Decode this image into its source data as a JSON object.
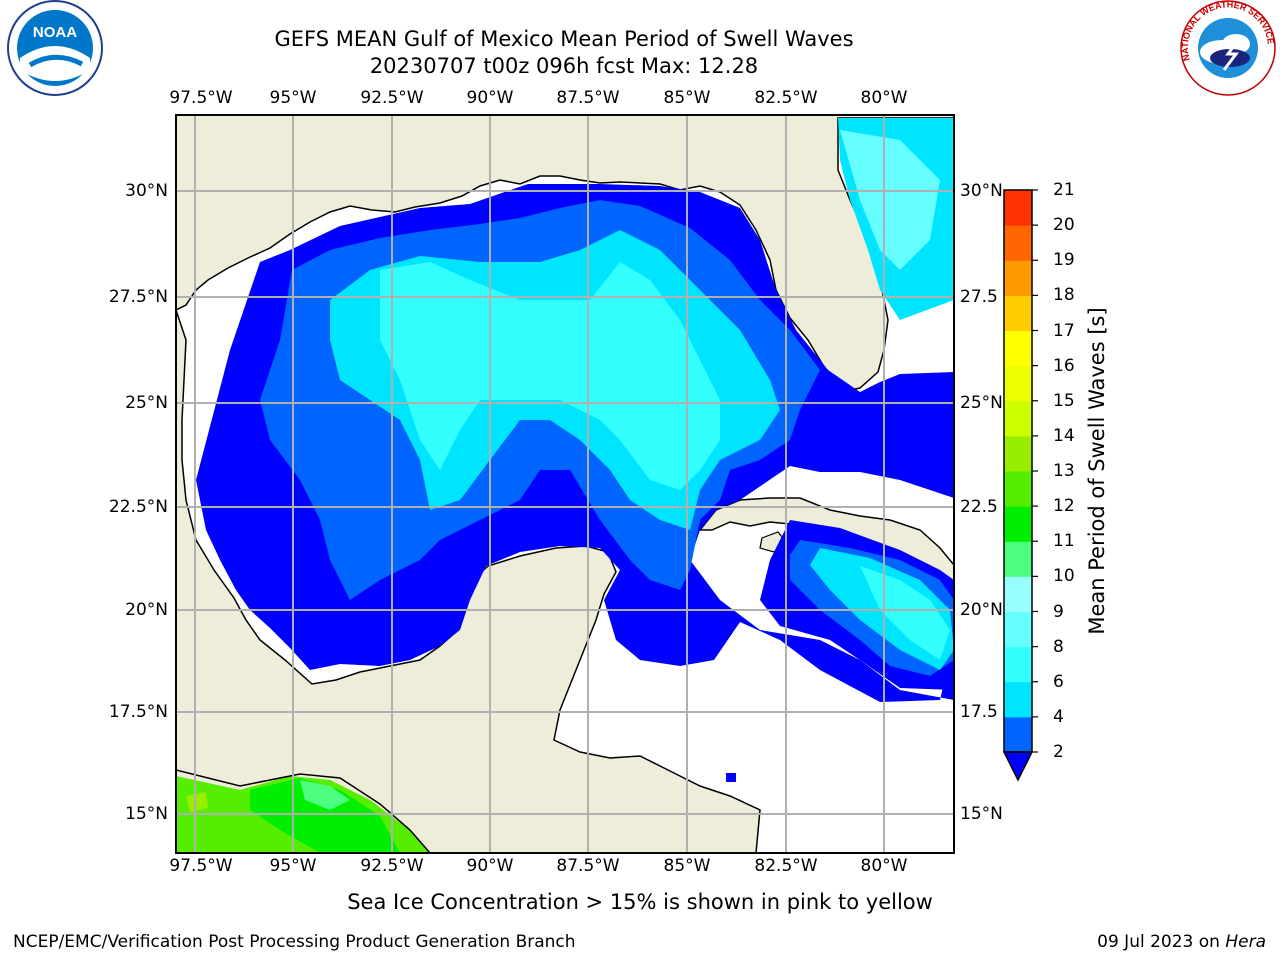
{
  "title": {
    "line1": "GEFS MEAN Gulf of Mexico Mean Period of Swell Waves",
    "line2": "20230707 t00z 096h fcst   Max: 12.28"
  },
  "logos": {
    "left": "noaa-logo",
    "left_text": "NOAA",
    "right": "nws-logo",
    "right_text": "NATIONAL WEATHER SERVICE"
  },
  "map": {
    "lon_ticks": [
      "97.5°W",
      "95°W",
      "92.5°W",
      "90°W",
      "87.5°W",
      "85°W",
      "82.5°W",
      "80°W"
    ],
    "lat_ticks_left": [
      "30°N",
      "27.5°N",
      "25°N",
      "22.5°N",
      "20°N",
      "17.5°N",
      "15°N"
    ],
    "lat_ticks_right": [
      "30°N",
      "27.5",
      "25°N",
      "22.5",
      "20°N",
      "17.5",
      "15°N"
    ],
    "colors": {
      "land": "#eeedd9",
      "grid": "#b0b0b0",
      "coast": "#000000"
    }
  },
  "colorbar": {
    "title": "Mean Period of Swell Waves [s]",
    "labels": [
      "2",
      "4",
      "6",
      "8",
      "9",
      "10",
      "11",
      "12",
      "13",
      "14",
      "15",
      "16",
      "17",
      "18",
      "19",
      "20",
      "21"
    ],
    "colors": [
      "#0064ff",
      "#00e5ff",
      "#33ffff",
      "#66ffff",
      "#99ffff",
      "#4dff80",
      "#00ee00",
      "#55ee00",
      "#99ee00",
      "#ccff00",
      "#eeff00",
      "#ffff00",
      "#ffcc00",
      "#ff9900",
      "#ff6600",
      "#ff3300",
      "#ff0000"
    ],
    "extend_color": "#0000ff"
  },
  "footnote": "Sea Ice Concentration > 15% is shown in pink to yellow",
  "footer": {
    "left": "NCEP/EMC/Verification Post Processing Product Generation Branch",
    "right_date": "09 Jul 2023 on ",
    "right_host": "Hera"
  }
}
